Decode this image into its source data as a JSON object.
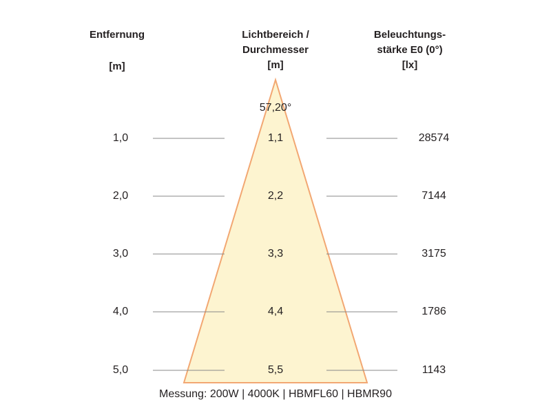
{
  "headers": {
    "distance": {
      "line1": "Entfernung",
      "unit": "[m]"
    },
    "light_area": {
      "line1": "Lichtbereich /",
      "line2": "Durchmesser",
      "unit": "[m]"
    },
    "illuminance": {
      "line1": "Beleuchtungs-",
      "line2": "stärke E0 (0°)",
      "unit": "[lx]"
    }
  },
  "beam_angle": "57,20°",
  "rows": [
    {
      "distance": "1,0",
      "diameter": "1,1",
      "lux": "28574"
    },
    {
      "distance": "2,0",
      "diameter": "2,2",
      "lux": "7144"
    },
    {
      "distance": "3,0",
      "diameter": "3,3",
      "lux": "3175"
    },
    {
      "distance": "4,0",
      "diameter": "4,4",
      "lux": "1786"
    },
    {
      "distance": "5,0",
      "diameter": "5,5",
      "lux": "1143"
    }
  ],
  "footer": "Messung: 200W | 4000K | HBMFL60 | HBMR90",
  "colors": {
    "cone_fill": "#fdf4d0",
    "cone_edge": "#f2a772",
    "guide_line": "#888888"
  }
}
